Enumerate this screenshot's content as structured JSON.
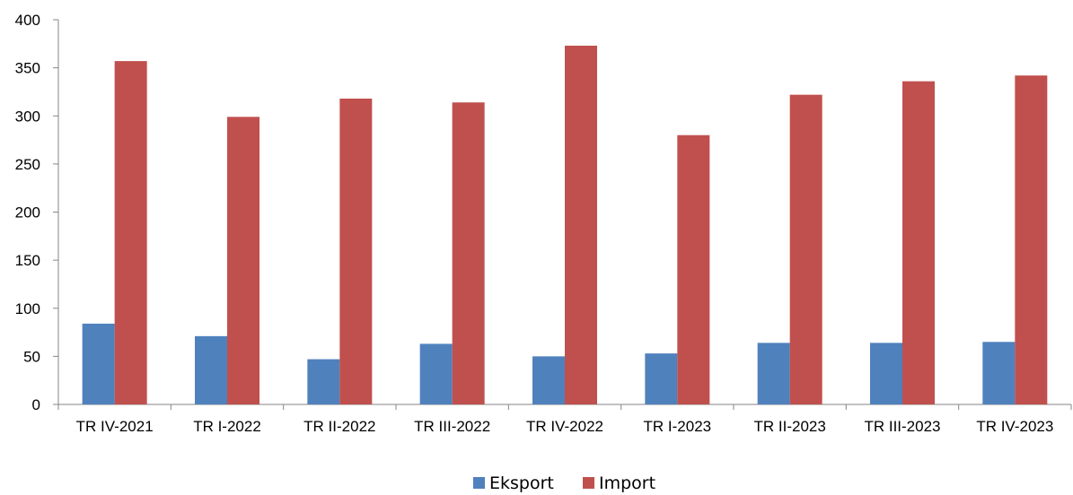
{
  "chart_data": {
    "type": "bar",
    "title": "",
    "xlabel": "",
    "ylabel": "",
    "categories": [
      "TR IV-2021",
      "TR I-2022",
      "TR II-2022",
      "TR III-2022",
      "TR IV-2022",
      "TR I-2023",
      "TR II-2023",
      "TR III-2023",
      "TR IV-2023"
    ],
    "series": [
      {
        "name": "Eksport",
        "color": "#4F81BD",
        "values": [
          84,
          71,
          47,
          63,
          50,
          53,
          64,
          64,
          65
        ]
      },
      {
        "name": "Import",
        "color": "#C0504D",
        "values": [
          357,
          299,
          318,
          314,
          373,
          280,
          322,
          336,
          342
        ]
      }
    ],
    "ylim": [
      0,
      400
    ],
    "yticks": [
      0,
      50,
      100,
      150,
      200,
      250,
      300,
      350,
      400
    ],
    "grid": false,
    "legend_position": "bottom"
  }
}
